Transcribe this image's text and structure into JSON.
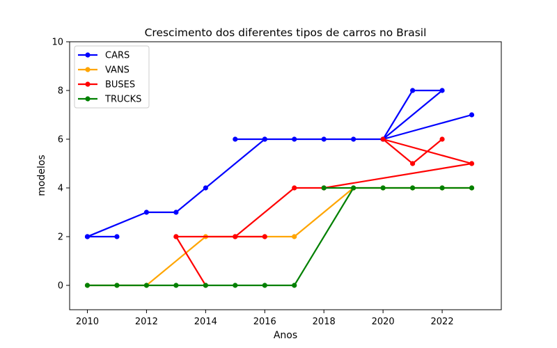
{
  "chart_data": {
    "type": "line",
    "title": "Crescimento dos diferentes tipos de carros no Brasil",
    "xlabel": "Anos",
    "ylabel": "modelos",
    "xlim": [
      2009.4,
      2024.0
    ],
    "ylim": [
      -1,
      10
    ],
    "xticks": [
      2010,
      2012,
      2014,
      2016,
      2018,
      2020,
      2022
    ],
    "yticks": [
      0,
      2,
      4,
      6,
      8,
      10
    ],
    "grid": false,
    "legend_position": "top-left",
    "series": [
      {
        "name": "CARS",
        "color": "#0000ff",
        "x": [
          2010,
          2011,
          2010,
          2012,
          2013,
          2014,
          2016,
          2015,
          2016,
          2017,
          2018,
          2019,
          2020,
          2021,
          2022,
          2020,
          2023
        ],
        "y": [
          2,
          2,
          2,
          3,
          3,
          4,
          6,
          6,
          6,
          6,
          6,
          6,
          6,
          8,
          8,
          6,
          7
        ]
      },
      {
        "name": "VANS",
        "color": "#ffa500",
        "x": [
          2010,
          2011,
          2012,
          2014,
          2015,
          2016,
          2017,
          2019,
          2020,
          2021,
          2022,
          2023
        ],
        "y": [
          0,
          0,
          0,
          2,
          2,
          2,
          2,
          4,
          4,
          4,
          4,
          4
        ]
      },
      {
        "name": "BUSES",
        "color": "#ff0000",
        "x": [
          2013,
          2014,
          2013,
          2015,
          2016,
          2015,
          2017,
          2018,
          2023,
          2020,
          2021,
          2022
        ],
        "y": [
          2,
          0,
          2,
          2,
          2,
          2,
          4,
          4,
          5,
          6,
          5,
          6
        ]
      },
      {
        "name": "TRUCKS",
        "color": "#008000",
        "x": [
          2010,
          2011,
          2012,
          2013,
          2014,
          2015,
          2016,
          2017,
          2019,
          2018,
          2020,
          2021,
          2022,
          2023
        ],
        "y": [
          0,
          0,
          0,
          0,
          0,
          0,
          0,
          0,
          4,
          4,
          4,
          4,
          4,
          4
        ]
      }
    ]
  }
}
